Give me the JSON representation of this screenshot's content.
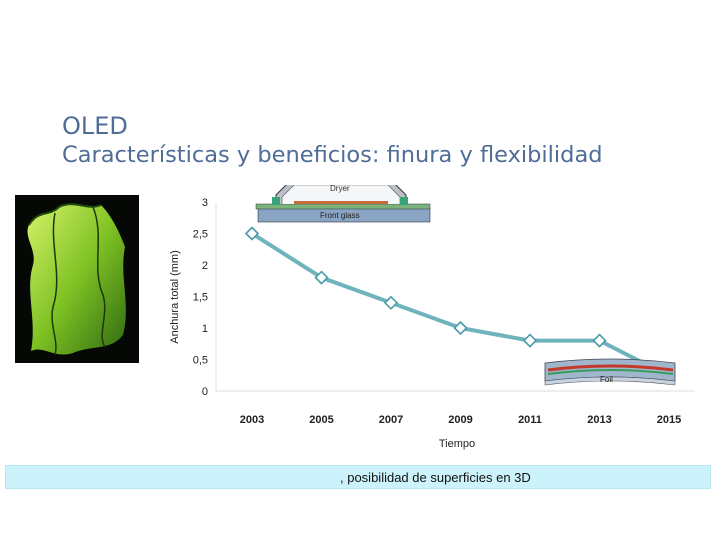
{
  "slide": {
    "title": "OLED",
    "subtitle": "Características y beneficios: finura y flexibilidad",
    "footer_text": ", posibilidad de superficies en 3D"
  },
  "diagrams": {
    "rigid_labels": [
      "Dryer",
      "Front glass"
    ],
    "flexible_label": "Foil"
  },
  "colors": {
    "title": "#4f6d96",
    "line": "#6fb3bd",
    "marker_stroke": "#4a9aa8",
    "band": "#ccf3fb"
  },
  "chart_data": {
    "type": "line",
    "xlabel": "Tiempo",
    "ylabel": "Anchura total (mm)",
    "categories": [
      "2003",
      "2005",
      "2007",
      "2009",
      "2011",
      "2013",
      "2015"
    ],
    "yticks": [
      "0",
      "0,5",
      "1",
      "1,5",
      "2",
      "2,5",
      "3"
    ],
    "ylim": [
      0,
      3
    ],
    "series": [
      {
        "x": [
          2003,
          2005,
          2007,
          2009,
          2011,
          2013
        ],
        "values": [
          2.5,
          1.8,
          1.4,
          1.0,
          0.8,
          0.8
        ]
      }
    ],
    "line_end": {
      "x": 2014.6,
      "y": 0.35
    },
    "grid": false
  }
}
